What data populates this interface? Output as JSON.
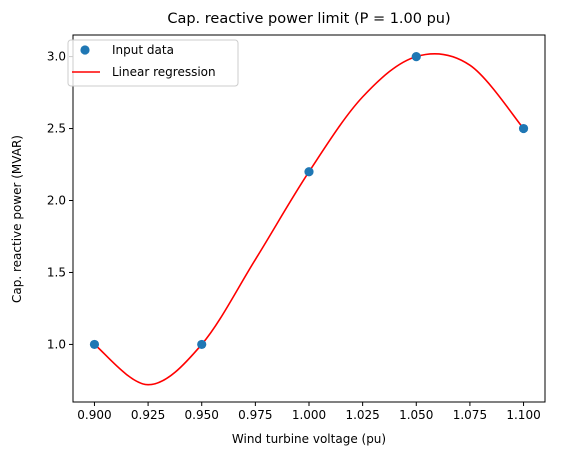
{
  "chart_data": {
    "type": "scatter",
    "title": "Cap. reactive power limit (P = 1.00 pu)",
    "xlabel": "Wind turbine voltage (pu)",
    "ylabel": "Cap. reactive power (MVAR)",
    "xlim": [
      0.89,
      1.11
    ],
    "ylim": [
      0.6,
      3.15
    ],
    "x_ticks": [
      0.9,
      0.925,
      0.95,
      0.975,
      1.0,
      1.025,
      1.05,
      1.075,
      1.1
    ],
    "x_tick_labels": [
      "0.900",
      "0.925",
      "0.950",
      "0.975",
      "1.000",
      "1.025",
      "1.050",
      "1.075",
      "1.100"
    ],
    "y_ticks": [
      1.0,
      1.5,
      2.0,
      2.5,
      3.0
    ],
    "y_tick_labels": [
      "1.0",
      "1.5",
      "2.0",
      "2.5",
      "3.0"
    ],
    "grid": false,
    "legend": "top-left",
    "series": [
      {
        "name": "Input data",
        "kind": "scatter",
        "color": "#1f77b4",
        "x": [
          0.9,
          0.95,
          1.0,
          1.05,
          1.1
        ],
        "y": [
          1.0,
          1.0,
          2.2,
          3.0,
          2.5
        ]
      },
      {
        "name": "Linear regression",
        "kind": "line",
        "color": "#ff0000",
        "x": [
          0.9,
          0.925,
          0.95,
          0.975,
          1.0,
          1.025,
          1.05,
          1.075,
          1.1
        ],
        "y": [
          1.0,
          0.72,
          1.0,
          1.59,
          2.2,
          2.72,
          3.0,
          2.94,
          2.5
        ]
      }
    ]
  }
}
